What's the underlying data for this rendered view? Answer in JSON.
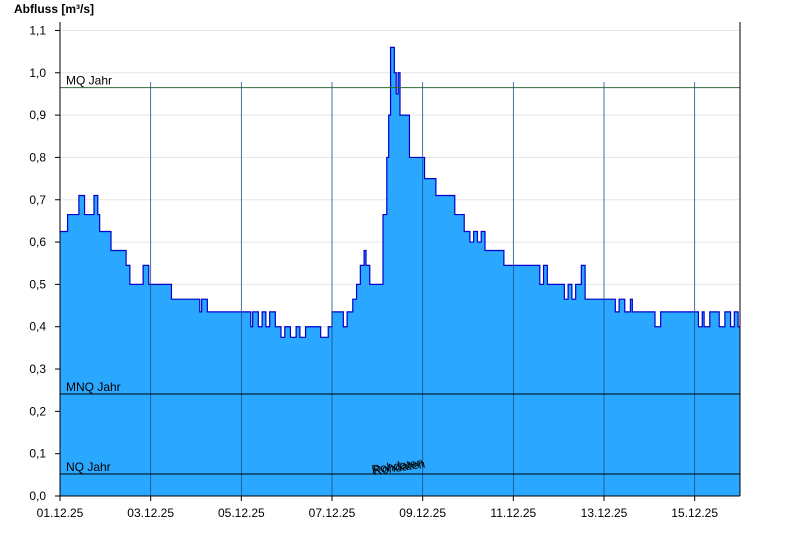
{
  "chart_data": {
    "type": "step-area",
    "y_label": "Abfluss [m³/s]",
    "watermark": "Rohdaten",
    "ylim": [
      0,
      1.12
    ],
    "yticks": [
      {
        "value": 0,
        "label": "0,0"
      },
      {
        "value": 0.1,
        "label": "0,1"
      },
      {
        "value": 0.2,
        "label": "0,2"
      },
      {
        "value": 0.3,
        "label": "0,3"
      },
      {
        "value": 0.4,
        "label": "0,4"
      },
      {
        "value": 0.5,
        "label": "0,5"
      },
      {
        "value": 0.6,
        "label": "0,6"
      },
      {
        "value": 0.7,
        "label": "0,7"
      },
      {
        "value": 0.8,
        "label": "0,8"
      },
      {
        "value": 0.9,
        "label": "0,9"
      },
      {
        "value": 1.0,
        "label": "1,0"
      },
      {
        "value": 1.1,
        "label": "1,1"
      }
    ],
    "xlim": [
      "2025-12-01 00:00",
      "2025-12-16 00:00"
    ],
    "xticks": [
      {
        "value": "2025-12-01 00:00",
        "label": "01.12.25"
      },
      {
        "value": "2025-12-03 00:00",
        "label": "03.12.25"
      },
      {
        "value": "2025-12-05 00:00",
        "label": "05.12.25"
      },
      {
        "value": "2025-12-07 00:00",
        "label": "07.12.25"
      },
      {
        "value": "2025-12-09 00:00",
        "label": "09.12.25"
      },
      {
        "value": "2025-12-11 00:00",
        "label": "11.12.25"
      },
      {
        "value": "2025-12-13 00:00",
        "label": "13.12.25"
      },
      {
        "value": "2025-12-15 00:00",
        "label": "15.12.25"
      }
    ],
    "grid": true,
    "reference_lines": [
      {
        "label": "MQ Jahr",
        "value": 0.965,
        "color": "#2e6b2e"
      },
      {
        "label": "MNQ Jahr",
        "value": 0.241,
        "color": "#000000"
      },
      {
        "label": "NQ Jahr",
        "value": 0.052,
        "color": "#000000"
      }
    ],
    "series": [
      {
        "color": "#2aa8ff",
        "line_color": "#0000cc",
        "x": [
          "2025-12-01 00:00",
          "2025-12-01 04:00",
          "2025-12-01 10:00",
          "2025-12-01 13:00",
          "2025-12-01 18:00",
          "2025-12-01 20:00",
          "2025-12-01 21:00",
          "2025-12-02 03:00",
          "2025-12-02 11:00",
          "2025-12-02 13:00",
          "2025-12-02 18:00",
          "2025-12-02 20:00",
          "2025-12-02 23:00",
          "2025-12-03 11:00",
          "2025-12-04 02:00",
          "2025-12-04 03:00",
          "2025-12-04 06:00",
          "2025-12-05 05:00",
          "2025-12-05 06:00",
          "2025-12-05 09:00",
          "2025-12-05 11:00",
          "2025-12-05 13:00",
          "2025-12-05 15:00",
          "2025-12-05 18:00",
          "2025-12-05 21:00",
          "2025-12-05 23:00",
          "2025-12-06 02:00",
          "2025-12-06 05:00",
          "2025-12-06 07:00",
          "2025-12-06 10:00",
          "2025-12-06 18:00",
          "2025-12-06 22:00",
          "2025-12-07 00:00",
          "2025-12-07 06:00",
          "2025-12-07 08:00",
          "2025-12-07 11:00",
          "2025-12-07 13:00",
          "2025-12-07 15:00",
          "2025-12-07 17:00",
          "2025-12-07 18:00",
          "2025-12-07 20:00",
          "2025-12-08 03:00",
          "2025-12-08 05:00",
          "2025-12-08 06:00",
          "2025-12-08 07:00",
          "2025-12-08 09:00",
          "2025-12-08 10:00",
          "2025-12-08 11:00",
          "2025-12-08 12:00",
          "2025-12-08 17:00",
          "2025-12-09 01:00",
          "2025-12-09 07:00",
          "2025-12-09 17:00",
          "2025-12-09 22:00",
          "2025-12-10 01:00",
          "2025-12-10 03:00",
          "2025-12-10 05:00",
          "2025-12-10 07:00",
          "2025-12-10 09:00",
          "2025-12-10 19:00",
          "2025-12-11 14:00",
          "2025-12-11 16:00",
          "2025-12-11 18:00",
          "2025-12-12 03:00",
          "2025-12-12 05:00",
          "2025-12-12 07:00",
          "2025-12-12 09:00",
          "2025-12-12 12:00",
          "2025-12-12 14:00",
          "2025-12-13 06:00",
          "2025-12-13 08:00",
          "2025-12-13 11:00",
          "2025-12-13 14:00",
          "2025-12-13 15:00",
          "2025-12-14 03:00",
          "2025-12-14 06:00",
          "2025-12-15 02:00",
          "2025-12-15 04:00",
          "2025-12-15 05:00",
          "2025-12-15 08:00",
          "2025-12-15 13:00",
          "2025-12-15 16:00",
          "2025-12-15 19:00",
          "2025-12-15 21:00",
          "2025-12-15 23:00"
        ],
        "values": [
          0.625,
          0.665,
          0.71,
          0.665,
          0.71,
          0.665,
          0.625,
          0.58,
          0.545,
          0.5,
          0.5,
          0.545,
          0.5,
          0.465,
          0.435,
          0.465,
          0.435,
          0.4,
          0.435,
          0.4,
          0.435,
          0.4,
          0.435,
          0.4,
          0.375,
          0.4,
          0.375,
          0.4,
          0.375,
          0.4,
          0.375,
          0.4,
          0.435,
          0.4,
          0.435,
          0.465,
          0.5,
          0.545,
          0.58,
          0.545,
          0.5,
          0.665,
          0.8,
          0.9,
          1.06,
          1.0,
          0.95,
          1.0,
          0.9,
          0.8,
          0.75,
          0.71,
          0.665,
          0.625,
          0.6,
          0.625,
          0.6,
          0.625,
          0.58,
          0.545,
          0.5,
          0.545,
          0.5,
          0.465,
          0.5,
          0.465,
          0.5,
          0.545,
          0.465,
          0.435,
          0.465,
          0.435,
          0.465,
          0.435,
          0.4,
          0.435,
          0.4,
          0.435,
          0.4,
          0.435,
          0.4,
          0.435,
          0.4,
          0.435,
          0.4
        ]
      }
    ]
  }
}
